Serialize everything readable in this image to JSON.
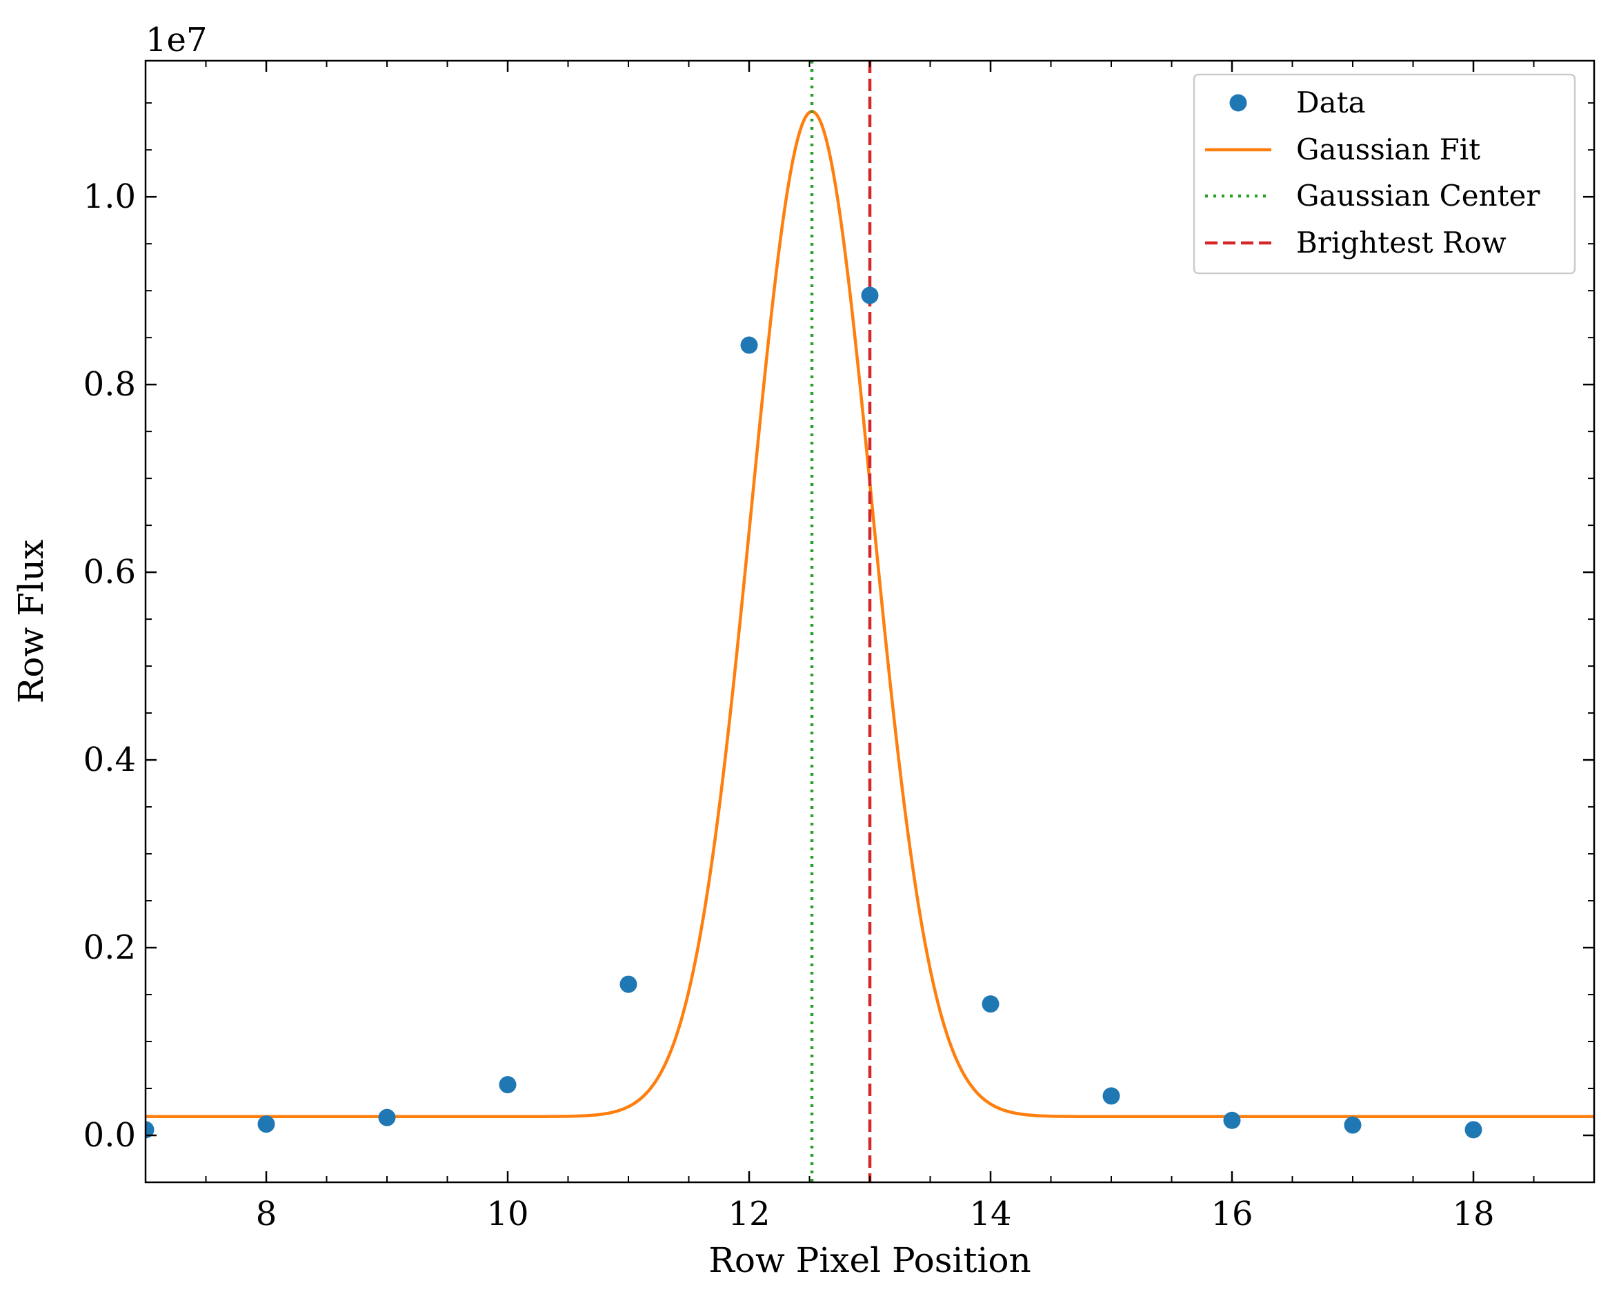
{
  "chart_data": {
    "type": "scatter",
    "xlabel": "Row Pixel Position",
    "ylabel": "Row Flux",
    "offset_label": "1e7",
    "xlim": [
      7,
      19
    ],
    "ylim": [
      -0.05,
      1.145
    ],
    "y_scale_factor": 10000000,
    "x_ticks": [
      8,
      10,
      12,
      14,
      16,
      18
    ],
    "x_tick_labels": [
      "8",
      "10",
      "12",
      "14",
      "16",
      "18"
    ],
    "x_minor_step": 0.5,
    "y_ticks": [
      0.0,
      0.2,
      0.4,
      0.6,
      0.8,
      1.0
    ],
    "y_tick_labels": [
      "0.0",
      "0.2",
      "0.4",
      "0.6",
      "0.8",
      "1.0"
    ],
    "y_minor_step": 0.05,
    "grid": false,
    "legend_position": "top-right",
    "series": [
      {
        "name": "Data",
        "kind": "scatter",
        "color": "#1f77b4",
        "x": [
          7,
          8,
          9,
          10,
          11,
          12,
          13,
          14,
          15,
          16,
          17,
          18
        ],
        "y": [
          0.006,
          0.012,
          0.019,
          0.054,
          0.161,
          0.842,
          0.895,
          0.14,
          0.042,
          0.016,
          0.011,
          0.006
        ]
      },
      {
        "name": "Gaussian Fit",
        "kind": "line",
        "color": "#ff7f0e",
        "model": {
          "offset": 0.02,
          "amplitude": 1.071,
          "center": 12.52,
          "sigma": 0.5
        }
      },
      {
        "name": "Gaussian Center",
        "kind": "vline",
        "style": "dotted",
        "color": "#2ca02c",
        "x": 12.52
      },
      {
        "name": "Brightest Row",
        "kind": "vline",
        "style": "dashed",
        "color": "#d62728",
        "x": 13
      }
    ]
  }
}
